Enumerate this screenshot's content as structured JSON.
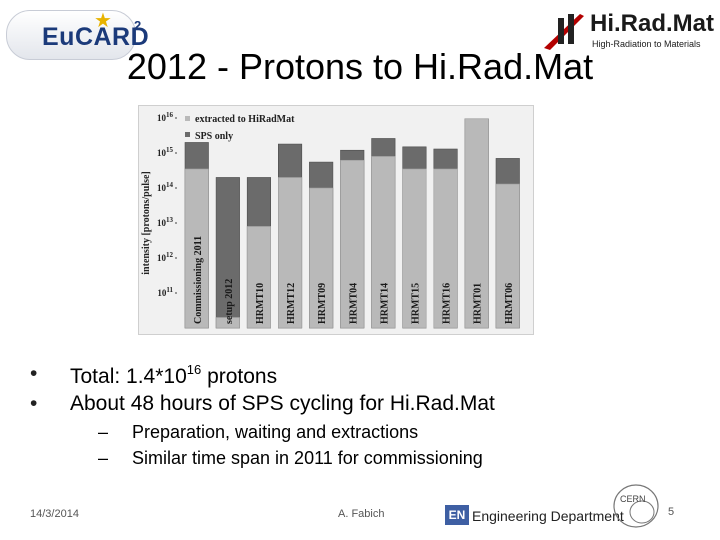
{
  "header": {
    "logo_left_text": "EuCARD",
    "logo_left_sup": "2",
    "logo_right_title": "Hi.Rad.Mat",
    "logo_right_sub": "High-Radiation to Materials",
    "title": "2012 - Protons to Hi.Rad.Mat"
  },
  "chart_data": {
    "type": "bar",
    "stacked": true,
    "ylabel": "intensity [protons/pulse]",
    "yscale": "log",
    "ylim": [
      10000000000.0,
      1e+16
    ],
    "yticks": [
      {
        "base": "10",
        "exp": "11",
        "value": 100000000000.0
      },
      {
        "base": "10",
        "exp": "12",
        "value": 1000000000000.0
      },
      {
        "base": "10",
        "exp": "13",
        "value": 10000000000000.0
      },
      {
        "base": "10",
        "exp": "14",
        "value": 100000000000000.0
      },
      {
        "base": "10",
        "exp": "15",
        "value": 1000000000000000.0
      },
      {
        "base": "10",
        "exp": "16",
        "value": 1e+16
      }
    ],
    "categories": [
      "Commissioning 2011",
      "setup 2012",
      "HRMT10",
      "HRMT12",
      "HRMT09",
      "HRMT04",
      "HRMT14",
      "HRMT15",
      "HRMT16",
      "HRMT01",
      "HRMT06"
    ],
    "series": [
      {
        "name": "extracted to HiRadMat",
        "color": "#b9b9b9",
        "values": [
          350000000000000.0,
          20000000000.0,
          8000000000000.0,
          200000000000000.0,
          100000000000000.0,
          620000000000000.0,
          800000000000000.0,
          350000000000000.0,
          350000000000000.0,
          9500000000000000.0,
          130000000000000.0
        ]
      },
      {
        "name": "SPS only",
        "color": "#6b6b6b",
        "values": [
          2000000000000000.0,
          200000000000000.0,
          200000000000000.0,
          1800000000000000.0,
          550000000000000.0,
          1200000000000000.0,
          2600000000000000.0,
          1500000000000000.0,
          1300000000000000.0,
          9500000000000000.0,
          700000000000000.0
        ]
      }
    ],
    "legend_position": "top-left",
    "grid": false
  },
  "bullets": {
    "total_prefix": "Total: 1.4*10",
    "total_exp": "16",
    "total_suffix": " protons",
    "hours": "About 48 hours of SPS cycling for Hi.Rad.Mat",
    "sub1": "Preparation, waiting and extractions",
    "sub2": "Similar time span in 2011 for commissioning"
  },
  "footer": {
    "date": "14/3/2014",
    "author": "A. Fabich",
    "dept_badge": "EN",
    "dept": "Engineering Department",
    "cern": "CERN",
    "page": "5"
  },
  "colors": {
    "extracted": "#b9b9b9",
    "sps_only": "#6b6b6b",
    "en_blue": "#3e5fa3"
  }
}
